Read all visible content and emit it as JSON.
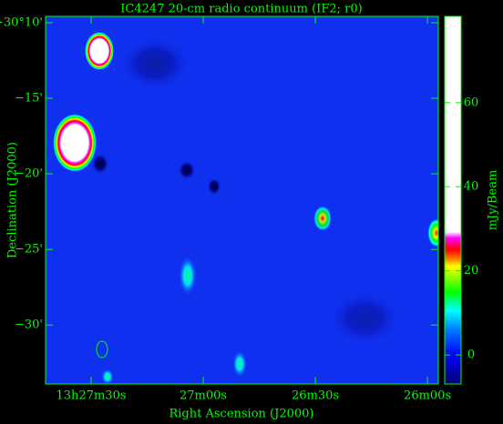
{
  "chart_data": {
    "type": "image",
    "title": "IC4247   20-cm radio continuum (IF2; r0)",
    "xlabel": "Right Ascension (J2000)",
    "ylabel": "Declination (J2000)",
    "xlim": [
      48462.2,
      48357.1
    ],
    "xticks": [
      {
        "value": 48450,
        "label": "13h27m30s"
      },
      {
        "value": 48420,
        "label": "27m00s"
      },
      {
        "value": 48390,
        "label": "26m30s"
      },
      {
        "value": 48360,
        "label": "26m00s"
      }
    ],
    "ylim": [
      -30.1597,
      -30.565
    ],
    "yticks": [
      {
        "value": -30.1667,
        "label": "−30°10'"
      },
      {
        "value": -30.25,
        "label": "−15'"
      },
      {
        "value": -30.3333,
        "label": "−20'"
      },
      {
        "value": -30.4167,
        "label": "−25'"
      },
      {
        "value": -30.5,
        "label": "−30'"
      }
    ],
    "colorbar": {
      "label": "mJy/Beam",
      "ylim": [
        -6.9,
        80.5
      ],
      "yticks": [
        0,
        20,
        40,
        60
      ]
    }
  }
}
